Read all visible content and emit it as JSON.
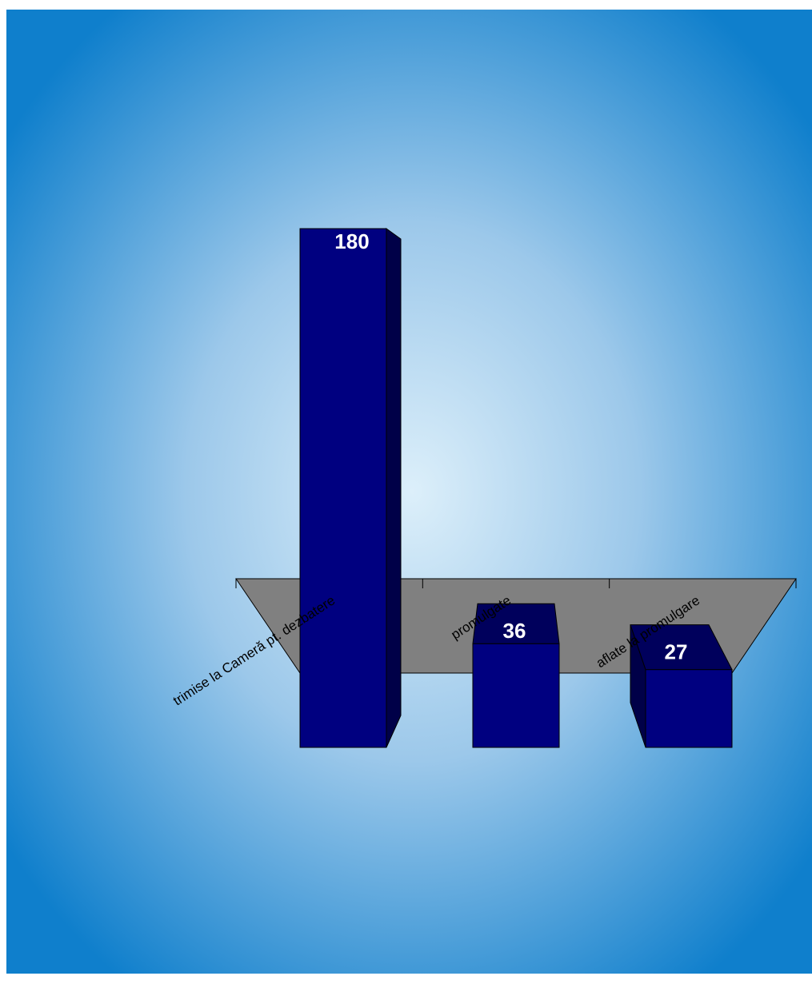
{
  "chart_data": {
    "type": "bar",
    "categories": [
      "trimise la Cameră pt. dezbatere",
      "promulgate",
      "aflate la promulgare"
    ],
    "values": [
      180,
      36,
      27
    ],
    "data_labels": [
      "180",
      "36",
      "27"
    ],
    "title": "",
    "xlabel": "",
    "ylabel": "",
    "ylim": [
      0,
      180
    ],
    "grid": false,
    "legend": "none",
    "style": "3d"
  },
  "colors": {
    "bar_front": "#000080",
    "bar_top": "#00005c",
    "bar_side": "#000048",
    "floor": "#808080",
    "background_edge": "#0f7fcc",
    "background_center": "#dceffa",
    "label_text": "#ffffff",
    "axis_text": "#000000"
  }
}
